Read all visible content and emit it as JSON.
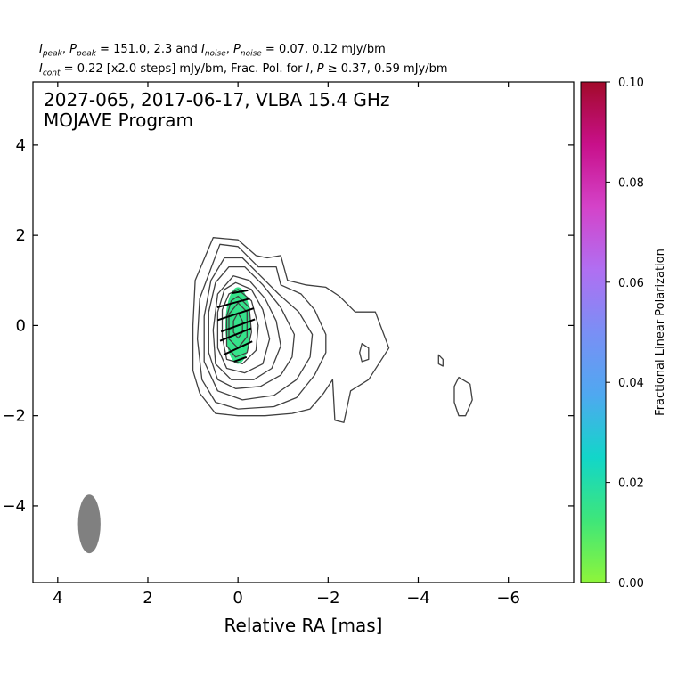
{
  "header": {
    "line1": "I_peak, P_peak = 151.0, 2.3 and I_noise, P_noise = 0.07, 0.12 mJy/bm",
    "line1_parts": {
      "i_peak_label": "I",
      "i_peak_sub": "peak",
      "p_peak_label": "P",
      "p_peak_sub": "peak",
      "peak_values": " = 151.0, 2.3 and ",
      "i_noise_label": "I",
      "i_noise_sub": "noise",
      "p_noise_label": "P",
      "p_noise_sub": "noise",
      "noise_values": " = 0.07, 0.12 mJy/bm"
    },
    "line2": "I_cont = 0.22 [x2.0 steps] mJy/bm, Frac. Pol. for I, P ≥ 0.37, 0.59 mJy/bm",
    "line2_parts": {
      "i_cont_label": "I",
      "i_cont_sub": "cont",
      "cont_text": " = 0.22 [x2.0 steps] mJy/bm, Frac. Pol. for ",
      "i_label": "I",
      "p_label": "P",
      "threshold_text": " ≥ 0.37, 0.59 mJy/bm"
    }
  },
  "chart_data": {
    "type": "contour",
    "title_line1": "2027-065, 2017-06-17, VLBA 15.4 GHz",
    "title_line2": "MOJAVE Program",
    "xlabel": "Relative RA [mas]",
    "ylabel": "",
    "xlim": [
      4.55,
      -7.45
    ],
    "ylim": [
      -5.7,
      5.4
    ],
    "xticks": [
      4,
      2,
      0,
      -2,
      -4,
      -6
    ],
    "xtick_labels": [
      "4",
      "2",
      "0",
      "−2",
      "−4",
      "−6"
    ],
    "yticks": [
      4,
      2,
      0,
      -2,
      -4
    ],
    "ytick_labels": [
      "4",
      "2",
      "0",
      "−2",
      "−4"
    ],
    "contours": [
      {
        "level": 1,
        "path": [
          [
            0.55,
            1.95
          ],
          [
            0.0,
            1.9
          ],
          [
            -0.4,
            1.55
          ],
          [
            -0.65,
            1.5
          ],
          [
            -0.95,
            1.55
          ],
          [
            -1.1,
            1.0
          ],
          [
            -1.5,
            0.9
          ],
          [
            -1.95,
            0.85
          ],
          [
            -2.25,
            0.65
          ],
          [
            -2.6,
            0.3
          ],
          [
            -3.05,
            0.3
          ],
          [
            -3.35,
            -0.5
          ],
          [
            -2.9,
            -1.2
          ],
          [
            -2.5,
            -1.45
          ],
          [
            -2.35,
            -2.15
          ],
          [
            -2.15,
            -2.1
          ],
          [
            -2.1,
            -1.2
          ],
          [
            -1.9,
            -1.5
          ],
          [
            -1.6,
            -1.85
          ],
          [
            -1.2,
            -1.95
          ],
          [
            -0.6,
            -2.0
          ],
          [
            0.0,
            -2.0
          ],
          [
            0.5,
            -1.95
          ],
          [
            0.85,
            -1.5
          ],
          [
            1.0,
            -1.0
          ],
          [
            1.0,
            0.0
          ],
          [
            0.95,
            1.0
          ],
          [
            0.55,
            1.95
          ]
        ]
      },
      {
        "level": 2,
        "path": [
          [
            0.4,
            1.8
          ],
          [
            0.0,
            1.75
          ],
          [
            -0.45,
            1.3
          ],
          [
            -0.85,
            1.3
          ],
          [
            -0.95,
            0.9
          ],
          [
            -1.4,
            0.7
          ],
          [
            -1.7,
            0.35
          ],
          [
            -1.95,
            -0.2
          ],
          [
            -1.95,
            -0.6
          ],
          [
            -1.7,
            -1.1
          ],
          [
            -1.3,
            -1.6
          ],
          [
            -0.8,
            -1.8
          ],
          [
            0.0,
            -1.85
          ],
          [
            0.5,
            -1.7
          ],
          [
            0.8,
            -1.2
          ],
          [
            0.9,
            -0.3
          ],
          [
            0.85,
            0.6
          ],
          [
            0.4,
            1.8
          ]
        ]
      },
      {
        "level": 3,
        "path": [
          [
            0.3,
            1.5
          ],
          [
            -0.1,
            1.5
          ],
          [
            -0.5,
            1.1
          ],
          [
            -0.9,
            0.7
          ],
          [
            -1.35,
            0.3
          ],
          [
            -1.65,
            -0.2
          ],
          [
            -1.6,
            -0.7
          ],
          [
            -1.3,
            -1.2
          ],
          [
            -0.8,
            -1.55
          ],
          [
            -0.1,
            -1.65
          ],
          [
            0.45,
            -1.45
          ],
          [
            0.75,
            -0.8
          ],
          [
            0.75,
            0.2
          ],
          [
            0.6,
            1.0
          ],
          [
            0.3,
            1.5
          ]
        ]
      },
      {
        "level": 4,
        "path": [
          [
            0.2,
            1.3
          ],
          [
            -0.15,
            1.3
          ],
          [
            -0.55,
            0.9
          ],
          [
            -0.95,
            0.4
          ],
          [
            -1.25,
            -0.2
          ],
          [
            -1.2,
            -0.7
          ],
          [
            -0.95,
            -1.1
          ],
          [
            -0.5,
            -1.35
          ],
          [
            0.05,
            -1.4
          ],
          [
            0.45,
            -1.2
          ],
          [
            0.65,
            -0.6
          ],
          [
            0.65,
            0.3
          ],
          [
            0.5,
            0.95
          ],
          [
            0.2,
            1.3
          ]
        ]
      },
      {
        "level": 5,
        "path": [
          [
            0.1,
            1.1
          ],
          [
            -0.25,
            1.0
          ],
          [
            -0.6,
            0.6
          ],
          [
            -0.85,
            0.1
          ],
          [
            -0.95,
            -0.45
          ],
          [
            -0.75,
            -0.95
          ],
          [
            -0.35,
            -1.2
          ],
          [
            0.15,
            -1.2
          ],
          [
            0.5,
            -0.85
          ],
          [
            0.55,
            -0.1
          ],
          [
            0.45,
            0.7
          ],
          [
            0.1,
            1.1
          ]
        ]
      },
      {
        "level": 6,
        "path": [
          [
            0.05,
            0.95
          ],
          [
            -0.3,
            0.8
          ],
          [
            -0.55,
            0.35
          ],
          [
            -0.7,
            -0.3
          ],
          [
            -0.55,
            -0.85
          ],
          [
            -0.15,
            -1.05
          ],
          [
            0.25,
            -0.95
          ],
          [
            0.45,
            -0.5
          ],
          [
            0.45,
            0.3
          ],
          [
            0.3,
            0.8
          ],
          [
            0.05,
            0.95
          ]
        ]
      },
      {
        "level": 7,
        "path": [
          [
            0.0,
            0.8
          ],
          [
            -0.3,
            0.55
          ],
          [
            -0.45,
            0.0
          ],
          [
            -0.4,
            -0.55
          ],
          [
            -0.1,
            -0.85
          ],
          [
            0.25,
            -0.75
          ],
          [
            0.35,
            -0.25
          ],
          [
            0.35,
            0.35
          ],
          [
            0.2,
            0.7
          ],
          [
            0.0,
            0.8
          ]
        ]
      },
      {
        "level": 8,
        "path": [
          [
            0.0,
            0.65
          ],
          [
            -0.25,
            0.4
          ],
          [
            -0.3,
            -0.15
          ],
          [
            -0.2,
            -0.6
          ],
          [
            0.05,
            -0.7
          ],
          [
            0.25,
            -0.45
          ],
          [
            0.25,
            0.2
          ],
          [
            0.15,
            0.55
          ],
          [
            0.0,
            0.65
          ]
        ]
      },
      {
        "level": 9,
        "path": [
          [
            0.0,
            0.5
          ],
          [
            -0.2,
            0.3
          ],
          [
            -0.2,
            -0.25
          ],
          [
            0.0,
            -0.5
          ],
          [
            0.2,
            -0.3
          ],
          [
            0.2,
            0.25
          ],
          [
            0.0,
            0.5
          ]
        ]
      },
      {
        "level": 10,
        "path": [
          [
            0.0,
            0.28
          ],
          [
            -0.1,
            0.1
          ],
          [
            -0.1,
            -0.15
          ],
          [
            0.0,
            -0.28
          ],
          [
            0.1,
            -0.15
          ],
          [
            0.1,
            0.1
          ],
          [
            0.0,
            0.28
          ]
        ]
      },
      {
        "level": 1,
        "path": [
          [
            -2.75,
            -0.4
          ],
          [
            -2.9,
            -0.5
          ],
          [
            -2.9,
            -0.75
          ],
          [
            -2.75,
            -0.8
          ],
          [
            -2.7,
            -0.6
          ],
          [
            -2.75,
            -0.4
          ]
        ]
      },
      {
        "level": 1,
        "path": [
          [
            -4.45,
            -0.65
          ],
          [
            -4.55,
            -0.75
          ],
          [
            -4.55,
            -0.9
          ],
          [
            -4.45,
            -0.85
          ],
          [
            -4.45,
            -0.65
          ]
        ]
      },
      {
        "level": 1,
        "path": [
          [
            -4.9,
            -1.15
          ],
          [
            -5.15,
            -1.3
          ],
          [
            -5.2,
            -1.65
          ],
          [
            -5.05,
            -2.0
          ],
          [
            -4.9,
            -2.0
          ],
          [
            -4.8,
            -1.7
          ],
          [
            -4.8,
            -1.35
          ],
          [
            -4.9,
            -1.15
          ]
        ]
      }
    ],
    "polarization_region": {
      "frac_pol": 0.015,
      "center": [
        0.0,
        0.0
      ],
      "rx": 0.28,
      "ry": 0.85
    },
    "evpa_vectors": [
      {
        "x": -0.05,
        "y": 0.75,
        "angle_deg": 10,
        "length": 0.35
      },
      {
        "x": 0.1,
        "y": 0.5,
        "angle_deg": 15,
        "length": 0.75
      },
      {
        "x": 0.05,
        "y": 0.25,
        "angle_deg": 18,
        "length": 0.85
      },
      {
        "x": 0.0,
        "y": 0.0,
        "angle_deg": 20,
        "length": 0.8
      },
      {
        "x": 0.05,
        "y": -0.2,
        "angle_deg": 22,
        "length": 0.75
      },
      {
        "x": 0.0,
        "y": -0.5,
        "angle_deg": 25,
        "length": 0.7
      },
      {
        "x": -0.05,
        "y": -0.75,
        "angle_deg": 20,
        "length": 0.3
      }
    ],
    "beam": {
      "x": 3.3,
      "y": -4.4,
      "major_mas": 1.3,
      "minor_mas": 0.5,
      "color": "#808080"
    },
    "colorbar": {
      "label": "Fractional Linear Polarization",
      "min": 0.0,
      "max": 0.1,
      "ticks": [
        0.0,
        0.02,
        0.04,
        0.06,
        0.08,
        0.1
      ],
      "tick_labels": [
        "0.00",
        "0.02",
        "0.04",
        "0.06",
        "0.08",
        "0.10"
      ],
      "colors": [
        "#8ef53a",
        "#3ee67a",
        "#12d6c9",
        "#4fa8f0",
        "#7a8ff5",
        "#b06ff2",
        "#d443c9",
        "#c8108a",
        "#a20a2a"
      ]
    },
    "contour_color": "#404040",
    "vector_color": "#000000"
  }
}
